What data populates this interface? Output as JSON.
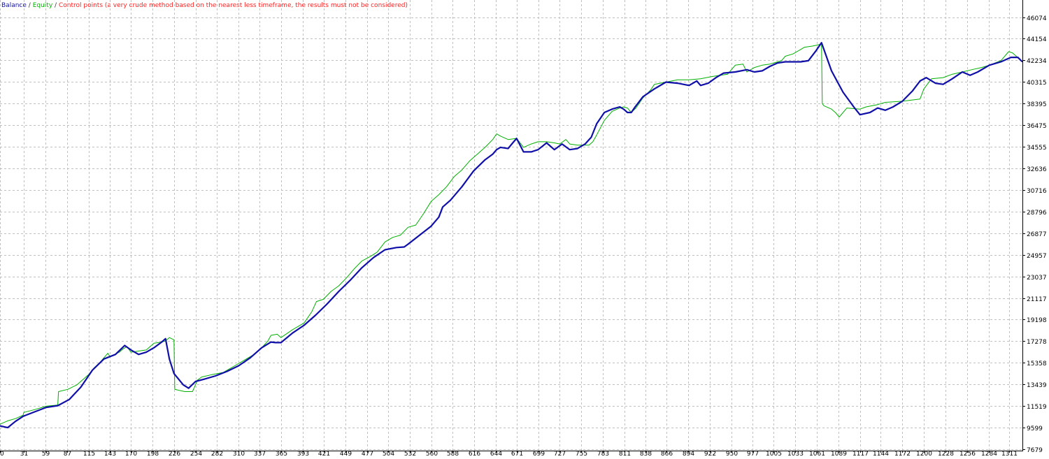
{
  "legend": {
    "balance": "Balance",
    "equity": "Equity",
    "control": "Control points (a very crude method based on the nearest less timeframe, the results must not be considered)",
    "separator": "/"
  },
  "colors": {
    "balance": "#1010a8",
    "equity": "#00b000",
    "control": "#ff2020",
    "grid": "#c0c0c0"
  },
  "chart_data": {
    "type": "line",
    "title": "",
    "xlabel": "",
    "ylabel": "",
    "grid": true,
    "legend_position": "top-left",
    "xlim": [
      0,
      1328
    ],
    "ylim": [
      7679,
      47500
    ],
    "x_ticks": [
      0,
      31,
      59,
      87,
      115,
      143,
      170,
      198,
      226,
      254,
      282,
      310,
      337,
      365,
      393,
      421,
      449,
      477,
      504,
      532,
      560,
      588,
      616,
      644,
      671,
      699,
      727,
      755,
      783,
      811,
      838,
      866,
      894,
      922,
      950,
      977,
      1005,
      1033,
      1061,
      1089,
      1117,
      1144,
      1172,
      1200,
      1228,
      1256,
      1284,
      1311
    ],
    "y_ticks": [
      7679,
      9599,
      11519,
      13439,
      15358,
      17278,
      19198,
      21117,
      23037,
      24957,
      26877,
      28796,
      30716,
      32636,
      34555,
      36475,
      38395,
      40315,
      42234,
      44154,
      46074
    ],
    "series": [
      {
        "name": "Balance",
        "x": [
          0,
          10,
          20,
          30,
          45,
          60,
          75,
          90,
          105,
          120,
          135,
          150,
          162,
          170,
          180,
          190,
          200,
          210,
          215,
          220,
          226,
          238,
          245,
          254,
          265,
          280,
          295,
          310,
          325,
          340,
          352,
          358,
          365,
          380,
          395,
          410,
          425,
          440,
          455,
          470,
          485,
          500,
          515,
          525,
          530,
          545,
          560,
          570,
          575,
          585,
          600,
          615,
          630,
          640,
          645,
          650,
          660,
          666,
          671,
          680,
          690,
          699,
          710,
          720,
          730,
          740,
          750,
          760,
          768,
          775,
          785,
          795,
          805,
          810,
          815,
          820,
          825,
          835,
          850,
          865,
          880,
          895,
          905,
          910,
          920,
          930,
          940,
          955,
          970,
          980,
          990,
          1000,
          1010,
          1020,
          1030,
          1040,
          1050,
          1060,
          1067,
          1080,
          1095,
          1110,
          1117,
          1130,
          1140,
          1150,
          1160,
          1172,
          1185,
          1195,
          1203,
          1215,
          1225,
          1237,
          1250,
          1260,
          1270,
          1285,
          1300,
          1313,
          1322,
          1328
        ],
        "y": [
          9750,
          9600,
          10150,
          10600,
          11000,
          11400,
          11550,
          12100,
          13200,
          14700,
          15700,
          16100,
          16900,
          16500,
          16100,
          16300,
          16700,
          17200,
          17500,
          15700,
          14400,
          13400,
          13100,
          13700,
          13900,
          14200,
          14600,
          15100,
          15800,
          16700,
          17200,
          17150,
          17150,
          18000,
          18700,
          19600,
          20600,
          21700,
          22700,
          23800,
          24700,
          25400,
          25600,
          25650,
          25900,
          26700,
          27500,
          28300,
          29200,
          29800,
          31000,
          32400,
          33400,
          33900,
          34300,
          34500,
          34400,
          34900,
          35300,
          34100,
          34100,
          34300,
          34900,
          34300,
          34800,
          34300,
          34400,
          34800,
          35400,
          36600,
          37600,
          37900,
          38100,
          37900,
          37600,
          37600,
          38100,
          39000,
          39700,
          40300,
          40200,
          40000,
          40400,
          40000,
          40200,
          40700,
          41100,
          41200,
          41400,
          41200,
          41300,
          41700,
          42000,
          42100,
          42100,
          42100,
          42200,
          43100,
          43800,
          41300,
          39400,
          38000,
          37400,
          37600,
          38000,
          37800,
          38100,
          38600,
          39500,
          40400,
          40700,
          40200,
          40100,
          40600,
          41200,
          40900,
          41200,
          41800,
          42100,
          42500,
          42500,
          42100
        ]
      },
      {
        "name": "Equity",
        "x": [
          0,
          10,
          20,
          30,
          31,
          45,
          60,
          75,
          76,
          88,
          100,
          115,
          122,
          130,
          140,
          143,
          155,
          160,
          165,
          170,
          180,
          190,
          200,
          210,
          215,
          220,
          226,
          227,
          240,
          250,
          254,
          256,
          262,
          275,
          290,
          305,
          320,
          330,
          340,
          348,
          352,
          360,
          365,
          380,
          395,
          405,
          411,
          420,
          430,
          440,
          450,
          460,
          470,
          481,
          490,
          500,
          510,
          520,
          530,
          540,
          550,
          560,
          570,
          580,
          590,
          600,
          610,
          620,
          630,
          640,
          645,
          650,
          660,
          671,
          680,
          690,
          699,
          710,
          720,
          727,
          735,
          740,
          750,
          755,
          765,
          770,
          775,
          785,
          795,
          805,
          810,
          815,
          820,
          826,
          835,
          845,
          850,
          865,
          880,
          895,
          910,
          925,
          945,
          955,
          965,
          970,
          980,
          990,
          1000,
          1005,
          1015,
          1020,
          1030,
          1040,
          1045,
          1055,
          1062,
          1067,
          1068,
          1070,
          1080,
          1085,
          1090,
          1100,
          1117,
          1125,
          1140,
          1150,
          1172,
          1195,
          1200,
          1210,
          1225,
          1237,
          1250,
          1262,
          1275,
          1285,
          1300,
          1310,
          1315,
          1320,
          1328
        ],
        "y": [
          9900,
          10200,
          10400,
          10700,
          10950,
          11200,
          11500,
          11600,
          12800,
          13000,
          13400,
          14300,
          14900,
          15400,
          16200,
          15900,
          16300,
          16600,
          16800,
          16300,
          16400,
          16500,
          17100,
          17200,
          17300,
          17600,
          17400,
          13000,
          12800,
          12800,
          13400,
          13800,
          14100,
          14300,
          14500,
          15100,
          15700,
          16100,
          16700,
          17300,
          17800,
          17900,
          17600,
          18300,
          18900,
          19900,
          20800,
          21000,
          21700,
          22200,
          22900,
          23700,
          24400,
          24800,
          25200,
          26100,
          26500,
          26700,
          27400,
          27600,
          28600,
          29700,
          30300,
          31000,
          31900,
          32500,
          33300,
          33900,
          34500,
          35200,
          35700,
          35500,
          35200,
          35300,
          34500,
          34800,
          35000,
          35000,
          34900,
          34800,
          35200,
          34800,
          34700,
          34700,
          34700,
          35000,
          35600,
          36900,
          37700,
          38000,
          38100,
          38000,
          37600,
          38000,
          38900,
          39600,
          40100,
          40300,
          40500,
          40500,
          40600,
          40800,
          41000,
          41800,
          41900,
          41200,
          41600,
          41800,
          41900,
          42000,
          42200,
          42600,
          42800,
          43200,
          43400,
          43500,
          43600,
          43700,
          38400,
          38200,
          37900,
          37600,
          37200,
          38000,
          37900,
          38100,
          38300,
          38500,
          38600,
          38800,
          39700,
          40600,
          40700,
          41000,
          41200,
          41400,
          41600,
          41800,
          42200,
          43000,
          42900,
          42600,
          42100
        ]
      }
    ]
  }
}
